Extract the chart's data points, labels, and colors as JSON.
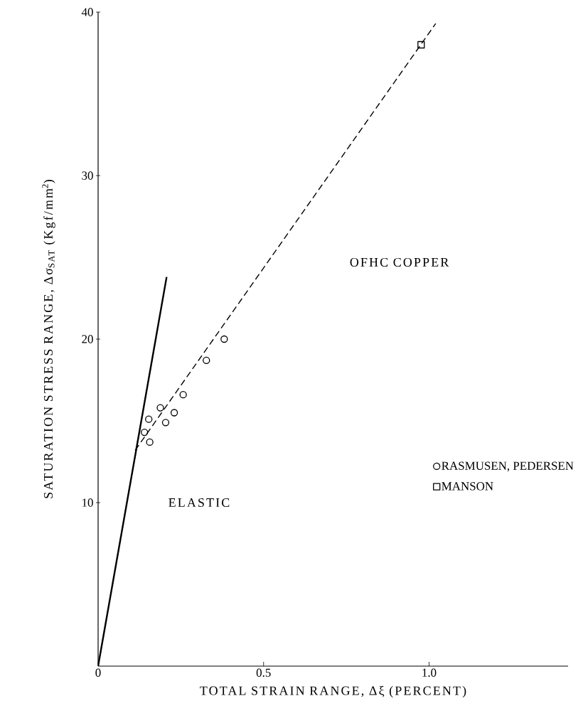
{
  "chart_data": {
    "type": "scatter",
    "xlabel": "TOTAL STRAIN RANGE, Δξ (PERCENT)",
    "ylabel": "SATURATION STRESS RANGE, Δσ$_{SAT}$ (Kgf/mm$^{2}$)",
    "annotations": [
      "ELASTIC",
      "OFHC COPPER"
    ],
    "xlim": [
      0,
      1.42
    ],
    "ylim": [
      0,
      40
    ],
    "xticks": [
      0,
      0.5,
      {
        "value": 1,
        "label": "1.0"
      }
    ],
    "yticks": [
      10,
      20,
      30,
      40
    ],
    "legend": "right",
    "series": [
      {
        "type": "line",
        "color": "#000000",
        "line_style": "solid",
        "marker": "none",
        "x": [
          0,
          0.207
        ],
        "values": [
          0,
          23.8
        ]
      },
      {
        "type": "line",
        "color": "#000000",
        "line_style": "dashed",
        "marker": "none",
        "x": [
          0.112,
          1.02
        ],
        "values": [
          13.2,
          39.3
        ]
      },
      {
        "name": "RASMUSEN, PEDERSEN",
        "color": "#000000",
        "marker": "circle",
        "x": [
          0.153,
          0.14,
          0.156,
          0.188,
          0.204,
          0.23,
          0.257,
          0.327,
          0.381
        ],
        "values": [
          15.1,
          14.3,
          13.7,
          15.8,
          14.9,
          15.5,
          16.6,
          18.7,
          20.0
        ]
      },
      {
        "name": "MANSON",
        "color": "#000000",
        "marker": "square",
        "x": [
          0.976
        ],
        "values": [
          38.0
        ]
      }
    ]
  }
}
